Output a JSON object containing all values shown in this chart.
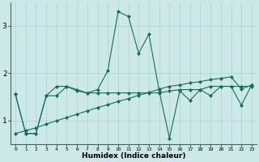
{
  "xlabel": "Humidex (Indice chaleur)",
  "xlim": [
    -0.5,
    23.5
  ],
  "ylim": [
    0.5,
    3.5
  ],
  "yticks": [
    1,
    2,
    3
  ],
  "xticks": [
    0,
    1,
    2,
    3,
    4,
    5,
    6,
    7,
    8,
    9,
    10,
    11,
    12,
    13,
    14,
    15,
    16,
    17,
    18,
    19,
    20,
    21,
    22,
    23
  ],
  "bg_color": "#cce8e8",
  "line_color": "#1a6b5e",
  "grid_color": "#a8d4d4",
  "series": [
    [
      1.55,
      0.72,
      0.72,
      1.52,
      1.72,
      1.72,
      1.65,
      1.58,
      1.65,
      2.05,
      3.3,
      3.2,
      2.42,
      2.82,
      1.62,
      0.62,
      1.62,
      1.42,
      1.65,
      1.52,
      1.72,
      1.72,
      1.32,
      1.75
    ],
    [
      1.55,
      0.72,
      0.72,
      1.52,
      1.52,
      1.72,
      1.62,
      1.58,
      1.58,
      1.58,
      1.58,
      1.58,
      1.58,
      1.58,
      1.58,
      1.62,
      1.65,
      1.65,
      1.65,
      1.72,
      1.72,
      1.72,
      1.72,
      1.72
    ],
    [
      0.72,
      0.78,
      0.84,
      0.92,
      0.99,
      1.06,
      1.13,
      1.2,
      1.27,
      1.33,
      1.4,
      1.46,
      1.53,
      1.59,
      1.66,
      1.72,
      1.75,
      1.79,
      1.82,
      1.86,
      1.89,
      1.92,
      1.66,
      1.75
    ]
  ]
}
